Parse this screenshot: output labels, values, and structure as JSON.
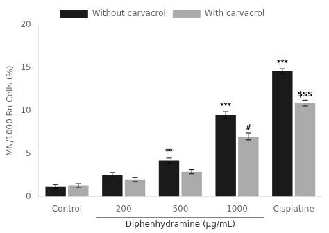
{
  "chart_data": {
    "type": "bar",
    "categories": [
      "Control",
      "200",
      "500",
      "1000",
      "Cisplatine"
    ],
    "series": [
      {
        "name": "Without carvacrol",
        "color": "#1a1a1a",
        "values": [
          1.2,
          2.5,
          4.2,
          9.5,
          14.6
        ],
        "errors": [
          0.2,
          0.3,
          0.3,
          0.4,
          0.3
        ],
        "annotations": [
          null,
          null,
          "**",
          "***",
          "***"
        ]
      },
      {
        "name": "With carvacrol",
        "color": "#aaaaaa",
        "values": [
          1.3,
          2.0,
          2.9,
          7.0,
          10.9
        ],
        "errors": [
          0.2,
          0.25,
          0.25,
          0.4,
          0.35
        ],
        "annotations": [
          null,
          null,
          null,
          "#",
          "$$$"
        ]
      }
    ],
    "ylabel": "MN/1000 Bn Cells (%)",
    "bracket_label": "Diphenhydramine (μg/mL)",
    "bracket_categories": [
      "200",
      "1000"
    ],
    "ylim": [
      0,
      20
    ],
    "yticks": [
      0,
      5,
      10,
      15,
      20
    ],
    "grid": false,
    "legend": "top"
  }
}
